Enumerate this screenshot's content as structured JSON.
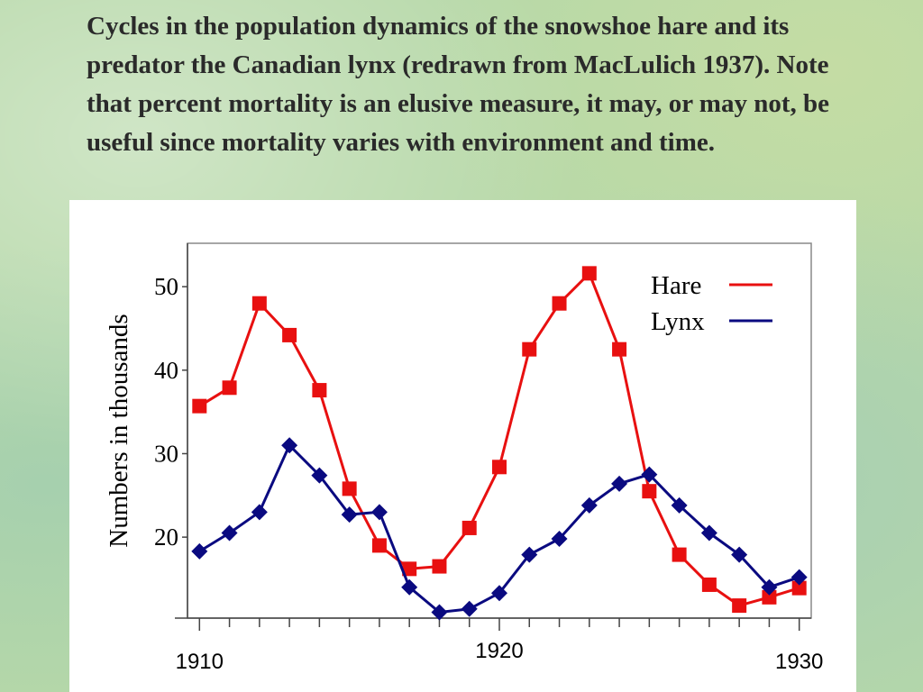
{
  "caption": "Cycles in the population dynamics of the snowshoe hare and its predator the Canadian lynx (redrawn from MacLulich 1937). Note that percent mortality is an elusive measure, it may, or may not, be useful since mortality varies with environment and time.",
  "colors": {
    "hare": "#e81010",
    "lynx": "#0a0a80"
  },
  "chart_data": {
    "type": "line",
    "title": "",
    "xlabel": "",
    "ylabel": "Numbers in thousands",
    "xlim": [
      1909.6,
      1930.4
    ],
    "ylim": [
      10.3,
      55.2
    ],
    "x_ticks": [
      1910,
      1920,
      1930
    ],
    "x_tick_labels": [
      "1910",
      "1920",
      "1930"
    ],
    "y_ticks": [
      20,
      30,
      40,
      50
    ],
    "y_tick_labels": [
      "20",
      "30",
      "40",
      "50"
    ],
    "grid": false,
    "legend_position": "top-right",
    "x": [
      1910,
      1911,
      1912,
      1913,
      1914,
      1915,
      1916,
      1917,
      1918,
      1919,
      1920,
      1921,
      1922,
      1923,
      1924,
      1925,
      1926,
      1927,
      1928,
      1929,
      1930
    ],
    "series": [
      {
        "name": "Hare",
        "marker": "square",
        "values": [
          35.7,
          37.9,
          48.0,
          44.2,
          37.6,
          25.8,
          19.0,
          16.2,
          16.5,
          21.1,
          28.4,
          42.5,
          48.0,
          51.6,
          42.5,
          25.5,
          17.9,
          14.3,
          11.8,
          12.8,
          13.9
        ]
      },
      {
        "name": "Lynx",
        "marker": "diamond",
        "values": [
          18.3,
          20.5,
          23.0,
          31.0,
          27.4,
          22.7,
          23.0,
          14.0,
          11.0,
          11.4,
          13.3,
          17.9,
          19.8,
          23.8,
          26.4,
          27.5,
          23.8,
          20.5,
          17.9,
          14.0,
          15.2
        ]
      }
    ]
  }
}
